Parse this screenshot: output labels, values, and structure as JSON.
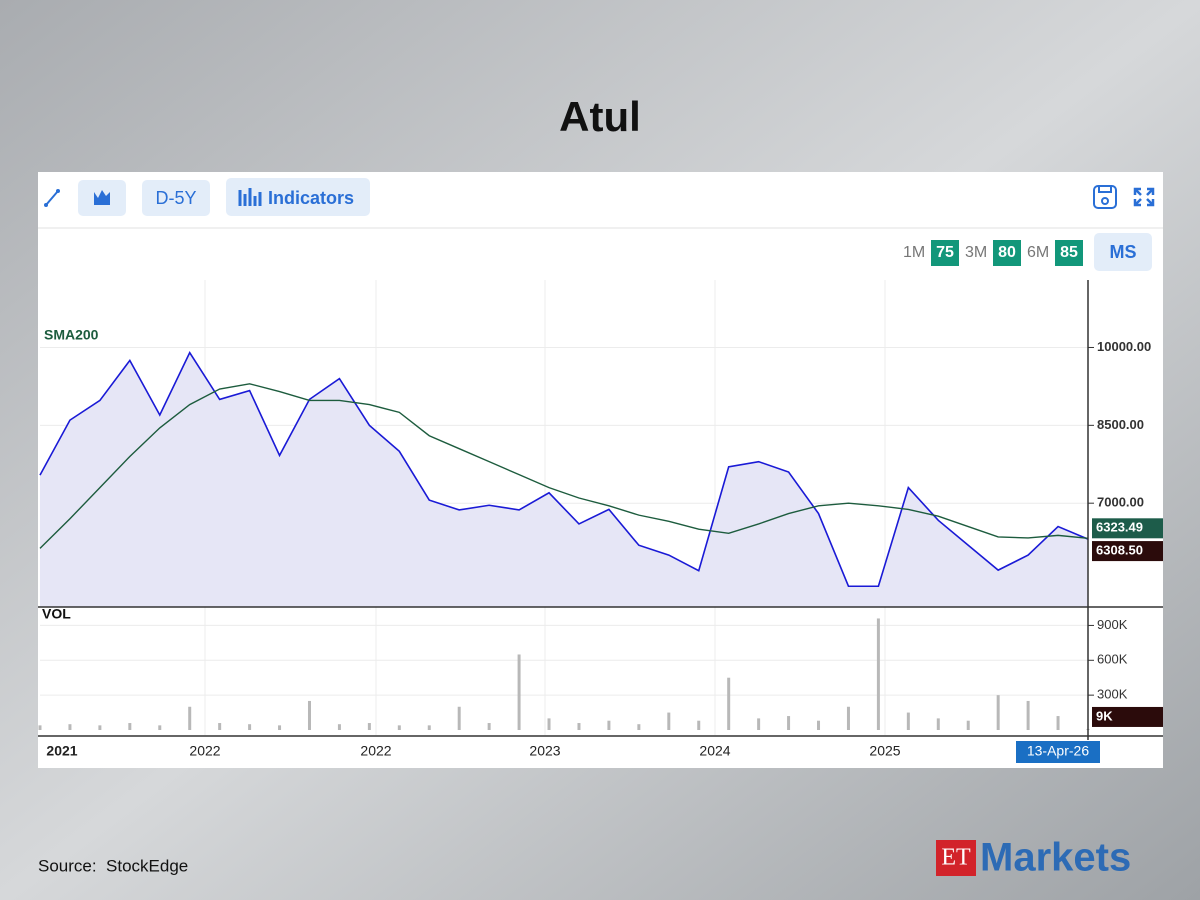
{
  "title": "Atul",
  "toolbar": {
    "period": "D-5Y",
    "indicators": "Indicators"
  },
  "badges": [
    {
      "label": "1M",
      "score": 75
    },
    {
      "label": "3M",
      "score": 80
    },
    {
      "label": "6M",
      "score": 85
    }
  ],
  "ms": "MS",
  "chart_data": [
    {
      "type": "line",
      "grid": true,
      "ylim": [
        5000,
        11300
      ],
      "yticks": [
        {
          "value": 7000,
          "label": "7000.00"
        },
        {
          "value": 8500,
          "label": "8500.00"
        },
        {
          "value": 10000,
          "label": "10000.00"
        }
      ],
      "series": [
        {
          "color": "#1a1ad6",
          "fill": "#e6e6f6",
          "last_label": "6308.50",
          "values": [
            7540,
            8600,
            8980,
            9750,
            8700,
            9900,
            9000,
            9170,
            7920,
            9000,
            9400,
            8500,
            8000,
            7060,
            6870,
            6960,
            6870,
            7200,
            6600,
            6880,
            6190,
            6000,
            5700,
            7700,
            7800,
            7600,
            6800,
            5400,
            5400,
            7300,
            6670,
            6190,
            5710,
            6000,
            6550,
            6308.5
          ]
        },
        {
          "name": "SMA200",
          "color": "#1d5c3e",
          "last_label": "6323.49",
          "values": [
            6130,
            6700,
            7300,
            7900,
            8450,
            8900,
            9200,
            9300,
            9150,
            8980,
            8980,
            8900,
            8750,
            8300,
            8050,
            7800,
            7550,
            7300,
            7100,
            6950,
            6770,
            6650,
            6500,
            6420,
            6600,
            6800,
            6950,
            7000,
            6950,
            6880,
            6750,
            6550,
            6350,
            6330,
            6380,
            6323.49
          ]
        }
      ]
    },
    {
      "type": "bar",
      "title": "VOL",
      "color": "#b8b8b8",
      "ylim": [
        0,
        1050000
      ],
      "yticks": [
        {
          "value": 300000,
          "label": "300K"
        },
        {
          "value": 600000,
          "label": "600K"
        },
        {
          "value": 900000,
          "label": "900K"
        }
      ],
      "values": [
        40000,
        50000,
        40000,
        60000,
        40000,
        200000,
        60000,
        50000,
        40000,
        250000,
        50000,
        60000,
        40000,
        40000,
        200000,
        60000,
        650000,
        100000,
        60000,
        80000,
        50000,
        150000,
        80000,
        450000,
        100000,
        120000,
        80000,
        200000,
        960000,
        150000,
        100000,
        80000,
        300000,
        250000,
        120000,
        9000
      ],
      "last_label": "9K",
      "xtick_labels": [
        "2021",
        "2022",
        "2022",
        "2023",
        "2024",
        "2025"
      ],
      "date_label": "13-Apr-26"
    }
  ],
  "source": "Source:  StockEdge",
  "logo": {
    "brand": "ET",
    "name": "Markets"
  }
}
